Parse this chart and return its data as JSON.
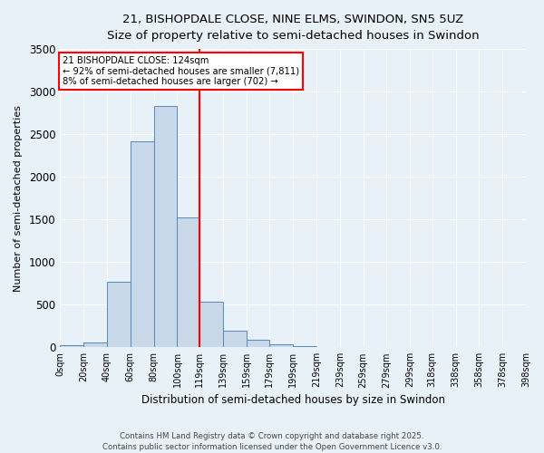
{
  "title1": "21, BISHOPDALE CLOSE, NINE ELMS, SWINDON, SN5 5UZ",
  "title2": "Size of property relative to semi-detached houses in Swindon",
  "xlabel": "Distribution of semi-detached houses by size in Swindon",
  "ylabel": "Number of semi-detached properties",
  "bar_edges": [
    0,
    20,
    40,
    60,
    80,
    100,
    119,
    139,
    159,
    179,
    199,
    219,
    239,
    259,
    279,
    299,
    318,
    338,
    358,
    378,
    398
  ],
  "bar_heights": [
    20,
    55,
    770,
    2420,
    2830,
    1520,
    540,
    190,
    90,
    30,
    10,
    5,
    3,
    2,
    1,
    1,
    0,
    0,
    0,
    0
  ],
  "bar_color": "#c8d8e8",
  "bar_edgecolor": "#5588bb",
  "vline_x": 119,
  "vline_color": "red",
  "annotation_title": "21 BISHOPDALE CLOSE: 124sqm",
  "annotation_line1": "← 92% of semi-detached houses are smaller (7,811)",
  "annotation_line2": "8% of semi-detached houses are larger (702) →",
  "annotation_box_color": "white",
  "annotation_box_edgecolor": "red",
  "ylim": [
    0,
    3500
  ],
  "yticks": [
    0,
    500,
    1000,
    1500,
    2000,
    2500,
    3000,
    3500
  ],
  "background_color": "#e8f0f8",
  "grid_color": "white",
  "footer1": "Contains HM Land Registry data © Crown copyright and database right 2025.",
  "footer2": "Contains public sector information licensed under the Open Government Licence v3.0.",
  "tick_labels": [
    "0sqm",
    "20sqm",
    "40sqm",
    "60sqm",
    "80sqm",
    "100sqm",
    "119sqm",
    "139sqm",
    "159sqm",
    "179sqm",
    "199sqm",
    "219sqm",
    "239sqm",
    "259sqm",
    "279sqm",
    "299sqm",
    "318sqm",
    "338sqm",
    "358sqm",
    "378sqm",
    "398sqm"
  ]
}
